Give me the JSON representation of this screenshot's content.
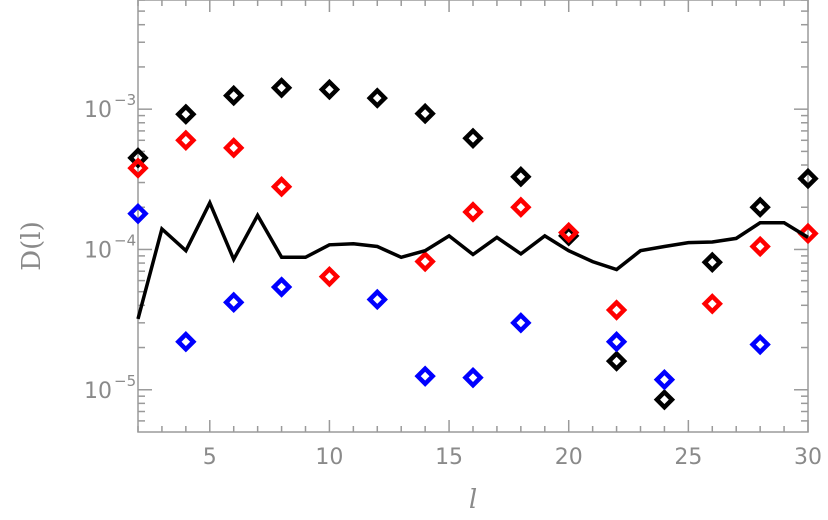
{
  "chart_data": {
    "type": "scatter",
    "xlabel": "l",
    "ylabel": "D(l)",
    "xlim": [
      2,
      30
    ],
    "ylim": [
      5e-06,
      0.006
    ],
    "yscale": "log",
    "grid": false,
    "x_ticks": [
      5,
      10,
      15,
      20,
      25,
      30
    ],
    "x_tick_labels": [
      "5",
      "10",
      "15",
      "20",
      "25",
      "30"
    ],
    "y_ticks": [
      1e-05,
      0.0001,
      0.001
    ],
    "y_tick_labels": [
      {
        "base": "10",
        "exp": "−5"
      },
      {
        "base": "10",
        "exp": "−4"
      },
      {
        "base": "10",
        "exp": "−3"
      }
    ],
    "series": [
      {
        "color": "#000000",
        "marker": "diamond",
        "points": [
          [
            2,
            0.00045
          ],
          [
            4,
            0.00092
          ],
          [
            6,
            0.00125
          ],
          [
            8,
            0.00142
          ],
          [
            10,
            0.00138
          ],
          [
            12,
            0.0012
          ],
          [
            14,
            0.00093
          ],
          [
            16,
            0.00062
          ],
          [
            18,
            0.00033
          ],
          [
            20,
            0.000125
          ],
          [
            22,
            1.6e-05
          ],
          [
            24,
            8.5e-06
          ],
          [
            26,
            8.1e-05
          ],
          [
            28,
            0.0002
          ],
          [
            30,
            0.00032
          ]
        ]
      },
      {
        "color": "#ff0000",
        "marker": "diamond",
        "points": [
          [
            2,
            0.00038
          ],
          [
            4,
            0.0006
          ],
          [
            6,
            0.00053
          ],
          [
            8,
            0.00028
          ],
          [
            10,
            6.4e-05
          ],
          [
            14,
            8.2e-05
          ],
          [
            16,
            0.000185
          ],
          [
            18,
            0.0002
          ],
          [
            20,
            0.000132
          ],
          [
            22,
            3.7e-05
          ],
          [
            26,
            4.1e-05
          ],
          [
            28,
            0.000105
          ],
          [
            30,
            0.00013
          ]
        ]
      },
      {
        "color": "#0000ff",
        "marker": "diamond",
        "points": [
          [
            2,
            0.00018
          ],
          [
            4,
            2.2e-05
          ],
          [
            6,
            4.2e-05
          ],
          [
            8,
            5.4e-05
          ],
          [
            12,
            4.4e-05
          ],
          [
            14,
            1.25e-05
          ],
          [
            16,
            1.22e-05
          ],
          [
            18,
            3e-05
          ],
          [
            22,
            2.2e-05
          ],
          [
            24,
            1.18e-05
          ],
          [
            28,
            2.1e-05
          ]
        ]
      },
      {
        "color": "#000000",
        "marker": "line",
        "points": [
          [
            2,
            3.2e-05
          ],
          [
            3,
            0.00014
          ],
          [
            4,
            9.8e-05
          ],
          [
            5,
            0.000215
          ],
          [
            6,
            8.5e-05
          ],
          [
            7,
            0.000175
          ],
          [
            8,
            8.8e-05
          ],
          [
            9,
            8.8e-05
          ],
          [
            10,
            0.000108
          ],
          [
            11,
            0.00011
          ],
          [
            12,
            0.000105
          ],
          [
            13,
            8.8e-05
          ],
          [
            14,
            9.8e-05
          ],
          [
            15,
            0.000125
          ],
          [
            16,
            9.2e-05
          ],
          [
            17,
            0.000122
          ],
          [
            18,
            9.3e-05
          ],
          [
            19,
            0.000125
          ],
          [
            20,
            9.8e-05
          ],
          [
            21,
            8.2e-05
          ],
          [
            22,
            7.2e-05
          ],
          [
            23,
            9.8e-05
          ],
          [
            24,
            0.000105
          ],
          [
            25,
            0.000112
          ],
          [
            26,
            0.000113
          ],
          [
            27,
            0.00012
          ],
          [
            28,
            0.000155
          ],
          [
            29,
            0.000155
          ],
          [
            30,
            0.000122
          ]
        ]
      }
    ]
  }
}
